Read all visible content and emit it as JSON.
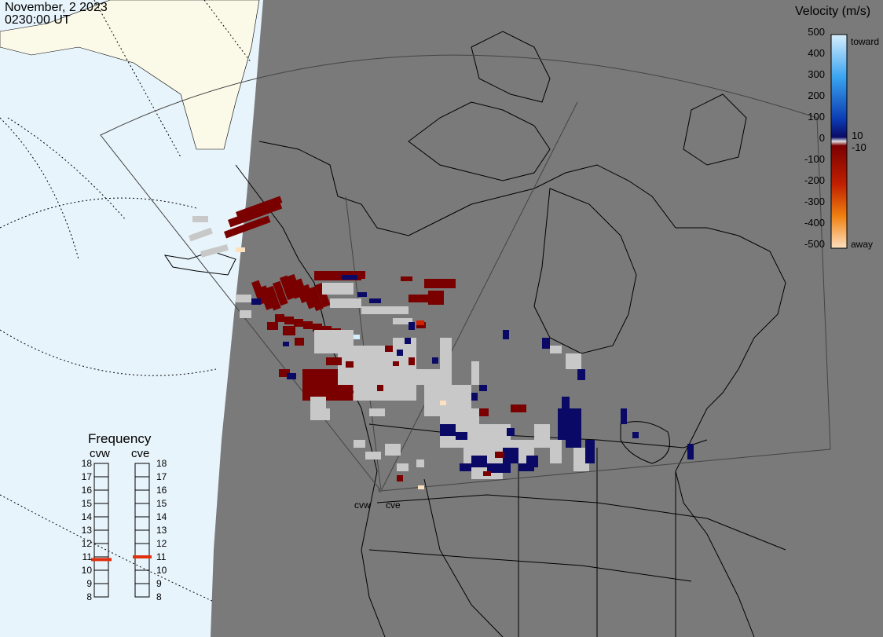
{
  "header": {
    "date": "November, 2 2023",
    "time": "0230:00 UT"
  },
  "colorbar": {
    "title": "Velocity (m/s)",
    "ticks": [
      "500",
      "400",
      "300",
      "200",
      "100",
      "10",
      "0",
      "-10",
      "-100",
      "-200",
      "-300",
      "-400",
      "-500"
    ],
    "toward_label": "toward",
    "away_label": "away",
    "colors": {
      "toward_light": "#d6eefc",
      "toward_mid": "#1e90e8",
      "toward_dark": "#0a2a9a",
      "near_zero": "#0a0a66",
      "away_dark": "#7a0000",
      "away_mid": "#d84800",
      "away_light": "#fde0c0",
      "ground_scatter": "#c8c8c8"
    }
  },
  "frequency_panel": {
    "title": "Frequency",
    "radars": [
      {
        "name": "cvw",
        "frequency_mhz": 10.8
      },
      {
        "name": "cve",
        "frequency_mhz": 11.0
      }
    ],
    "scale_labels": [
      "18",
      "17",
      "16",
      "15",
      "14",
      "13",
      "12",
      "11",
      "10",
      "9",
      "8"
    ]
  },
  "radar_sites": [
    {
      "label": "cvw"
    },
    {
      "label": "cve"
    }
  ],
  "map_colors": {
    "land": "#7a7a7a",
    "ocean": "#e8f4fb",
    "outside_land": "#fbf9e8",
    "coastline": "#000000"
  }
}
